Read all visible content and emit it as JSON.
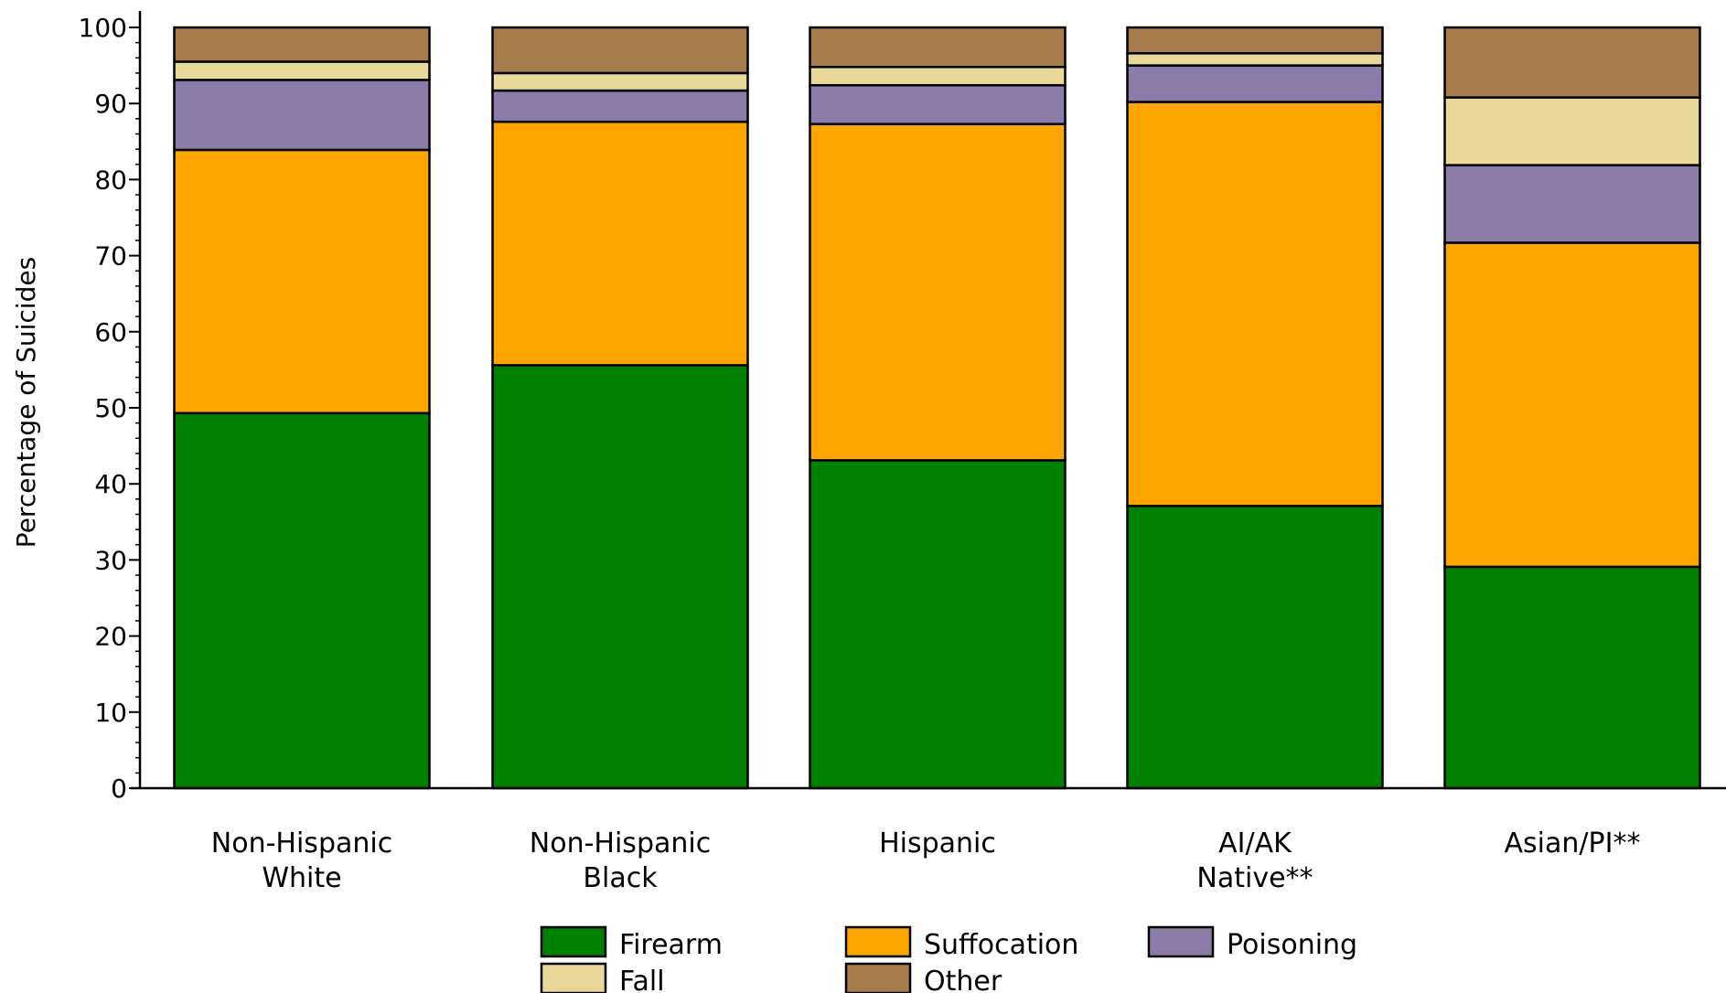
{
  "chart_data": {
    "type": "bar",
    "stacked": true,
    "ylabel": "Percentage of Suicides",
    "xlabel": "",
    "ylim": [
      0,
      100
    ],
    "yticks": [
      0,
      10,
      20,
      30,
      40,
      50,
      60,
      70,
      80,
      90,
      100
    ],
    "categories": [
      [
        "Non-Hispanic",
        "White"
      ],
      [
        "Non-Hispanic",
        "Black"
      ],
      [
        "Hispanic"
      ],
      [
        "AI/AK",
        "Native**"
      ],
      [
        "Asian/PI**"
      ]
    ],
    "series": [
      {
        "name": "Firearm",
        "color": "#008000",
        "values": [
          49.3,
          55.6,
          43.1,
          37.1,
          29.1
        ]
      },
      {
        "name": "Suffocation",
        "color": "#FFA500",
        "values": [
          34.6,
          32.0,
          44.2,
          53.1,
          42.6
        ]
      },
      {
        "name": "Poisoning",
        "color": "#8A7BA8",
        "values": [
          9.2,
          4.1,
          5.1,
          4.8,
          10.2
        ]
      },
      {
        "name": "Fall",
        "color": "#E8D89A",
        "values": [
          2.4,
          2.3,
          2.4,
          1.6,
          8.9
        ]
      },
      {
        "name": "Other",
        "color": "#A67C4C",
        "values": [
          4.5,
          6.0,
          5.2,
          3.4,
          9.2
        ]
      }
    ],
    "legend": {
      "placement": "bottom",
      "rows": [
        [
          "Firearm",
          "Suffocation",
          "Poisoning"
        ],
        [
          "Fall",
          "Other"
        ]
      ]
    },
    "grid": false
  }
}
